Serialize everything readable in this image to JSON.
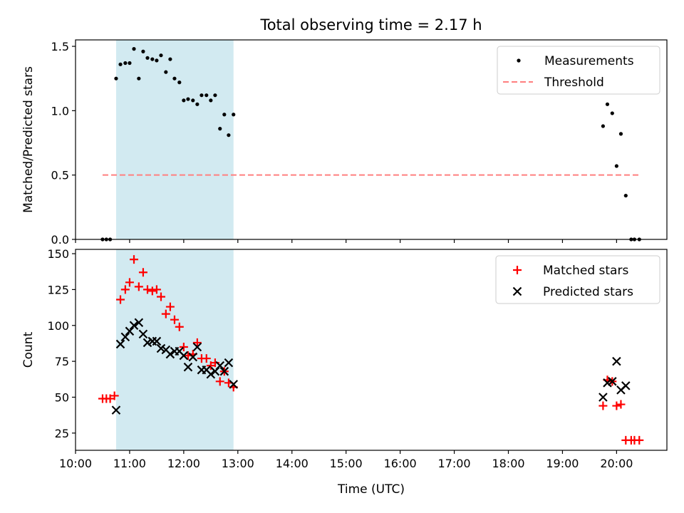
{
  "title": "Total observing time = 2.17 h",
  "colors": {
    "shade": "#add8e6",
    "measurement": "#000000",
    "threshold": "#ff7f7f",
    "matched": "#ff0000",
    "predicted": "#000000"
  },
  "chart_data": [
    {
      "type": "scatter",
      "panel": "top",
      "xlabel": "",
      "ylabel": "Matched/Predicted stars",
      "xlim": [
        10.0,
        20.93
      ],
      "ylim": [
        0.0,
        1.55
      ],
      "yticks": [
        0.0,
        0.5,
        1.0,
        1.5
      ],
      "ytick_labels": [
        "0.0",
        "0.5",
        "1.0",
        "1.5"
      ],
      "shaded_span": [
        10.75,
        12.92
      ],
      "legend_position": "upper right",
      "legend": [
        "Measurements",
        "Threshold"
      ],
      "threshold": {
        "name": "Threshold",
        "y": 0.5,
        "x": [
          10.5,
          20.45
        ]
      },
      "series": [
        {
          "name": "Measurements",
          "marker": "dot",
          "x": [
            10.5,
            10.57,
            10.64,
            10.75,
            10.83,
            10.92,
            11.0,
            11.08,
            11.17,
            11.25,
            11.33,
            11.42,
            11.5,
            11.58,
            11.67,
            11.75,
            11.83,
            11.92,
            12.0,
            12.08,
            12.17,
            12.25,
            12.33,
            12.42,
            12.5,
            12.58,
            12.67,
            12.75,
            12.83,
            12.92,
            19.75,
            19.83,
            19.92,
            20.0,
            20.08,
            20.17,
            20.27,
            20.33,
            20.42
          ],
          "y": [
            0.0,
            0.0,
            0.0,
            1.25,
            1.36,
            1.37,
            1.37,
            1.48,
            1.25,
            1.46,
            1.41,
            1.4,
            1.39,
            1.43,
            1.3,
            1.4,
            1.25,
            1.22,
            1.08,
            1.09,
            1.08,
            1.05,
            1.12,
            1.12,
            1.08,
            1.12,
            0.86,
            0.97,
            0.81,
            0.97,
            0.88,
            1.05,
            0.98,
            0.57,
            0.82,
            0.34,
            0.0,
            0.0,
            0.0
          ]
        }
      ]
    },
    {
      "type": "scatter",
      "panel": "bottom",
      "xlabel": "Time (UTC)",
      "ylabel": "Count",
      "xlim": [
        10.0,
        20.93
      ],
      "ylim": [
        13,
        153
      ],
      "yticks": [
        25,
        50,
        75,
        100,
        125,
        150
      ],
      "ytick_labels": [
        "25",
        "50",
        "75",
        "100",
        "125",
        "150"
      ],
      "xticks": [
        10,
        11,
        12,
        13,
        14,
        15,
        16,
        17,
        18,
        19,
        20
      ],
      "xtick_labels": [
        "10:00",
        "11:00",
        "12:00",
        "13:00",
        "14:00",
        "15:00",
        "16:00",
        "17:00",
        "18:00",
        "19:00",
        "20:00"
      ],
      "shaded_span": [
        10.75,
        12.92
      ],
      "legend_position": "upper right",
      "legend": [
        "Matched stars",
        "Predicted stars"
      ],
      "series": [
        {
          "name": "Matched stars",
          "marker": "plus",
          "x": [
            10.5,
            10.57,
            10.64,
            10.72,
            10.83,
            10.92,
            11.0,
            11.08,
            11.17,
            11.25,
            11.33,
            11.42,
            11.5,
            11.58,
            11.67,
            11.75,
            11.83,
            11.92,
            12.0,
            12.08,
            12.17,
            12.25,
            12.33,
            12.42,
            12.5,
            12.58,
            12.67,
            12.75,
            12.83,
            12.92,
            19.75,
            19.83,
            19.92,
            20.0,
            20.08,
            20.17,
            20.27,
            20.33,
            20.42
          ],
          "y": [
            49,
            49,
            49,
            51,
            118,
            125,
            130,
            146,
            127,
            137,
            125,
            124,
            125,
            120,
            108,
            113,
            104,
            99,
            85,
            79,
            80,
            88,
            77,
            77,
            72,
            74,
            61,
            68,
            60,
            57,
            44,
            62,
            61,
            44,
            45,
            20,
            20,
            20,
            20
          ]
        },
        {
          "name": "Predicted stars",
          "x": [
            10.75,
            10.83,
            10.92,
            11.0,
            11.08,
            11.17,
            11.25,
            11.33,
            11.42,
            11.5,
            11.58,
            11.67,
            11.75,
            11.83,
            11.92,
            12.0,
            12.08,
            12.17,
            12.25,
            12.33,
            12.42,
            12.5,
            12.58,
            12.67,
            12.75,
            12.83,
            12.92,
            19.75,
            19.83,
            19.92,
            20.0,
            20.08,
            20.17
          ],
          "y": [
            41,
            87,
            92,
            96,
            100,
            102,
            94,
            88,
            89,
            89,
            84,
            83,
            80,
            82,
            82,
            79,
            71,
            78,
            85,
            69,
            69,
            66,
            68,
            72,
            68,
            74,
            59,
            50,
            60,
            61,
            75,
            55,
            58
          ]
        }
      ]
    }
  ]
}
